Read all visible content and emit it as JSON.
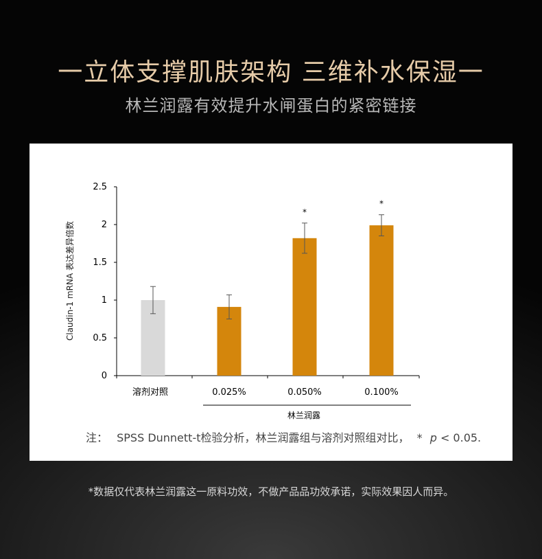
{
  "header": {
    "title": "一立体支撑肌肤架构 三维补水保湿一",
    "subtitle": "林兰润露有效提升水闸蛋白的紧密链接"
  },
  "chart_data": {
    "type": "bar",
    "ylabel": "Claudin-1 mRNA 表达差异倍数",
    "ylim": [
      0,
      2.5
    ],
    "yticks": [
      "0",
      "0.5",
      "1",
      "1.5",
      "2",
      "2.5"
    ],
    "categories": [
      "溶剂对照",
      "0.025%",
      "0.050%",
      "0.100%"
    ],
    "values": [
      1.0,
      0.91,
      1.82,
      1.99
    ],
    "errors": [
      0.18,
      0.16,
      0.2,
      0.14
    ],
    "significance": [
      "",
      "",
      "*",
      "*"
    ],
    "bar_colors": [
      "#d9d9d9",
      "#d4860c",
      "#d4860c",
      "#d4860c"
    ],
    "group_label": "林兰润露",
    "note_prefix": "注：",
    "note_text": "SPSS Dunnett-t检验分析，林兰润露组与溶剂对照组对比，",
    "note_star": "*",
    "note_p": "p",
    "note_tail": "< 0.05."
  },
  "footer": {
    "disclaimer": "*数据仅代表林兰润露这一原料功效，不做产品品功效承诺，实际效果因人而异。"
  }
}
